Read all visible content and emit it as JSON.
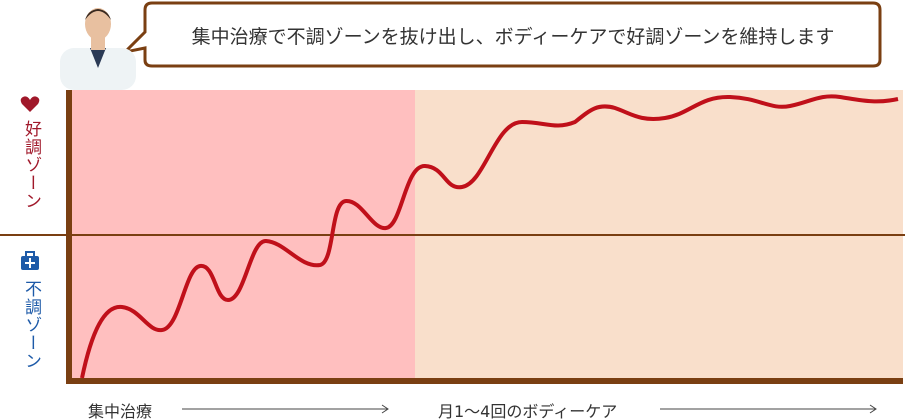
{
  "bubble": {
    "text": "集中治療で不調ゾーンを抜け出し、ボディーケアで好調ゾーンを維持します"
  },
  "zones": {
    "good": "好調ゾーン",
    "bad": "不調ゾーン"
  },
  "phases": [
    "集中治療",
    "月1〜4回のボディーケア"
  ]
}
